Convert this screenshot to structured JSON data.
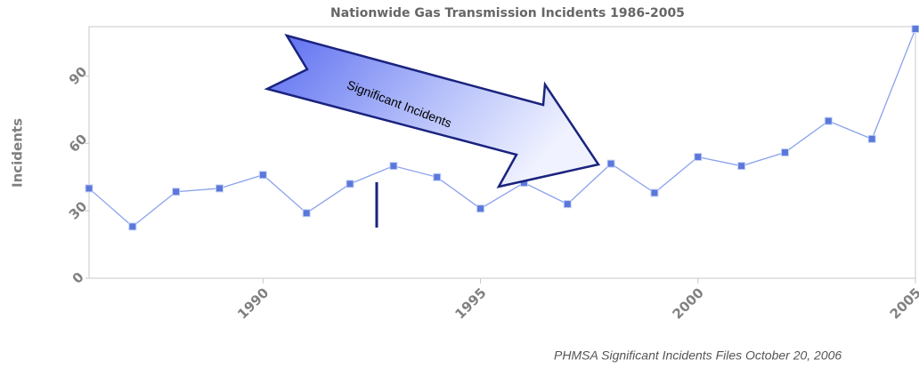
{
  "chart_data": {
    "type": "line",
    "title": "Nationwide Gas Transmission Incidents 1986-2005",
    "y_label": "Incidents",
    "annotation": "Significant Incidents",
    "source": "PHMSA Significant Incidents Files October 20, 2006",
    "x": [
      1986,
      1987,
      1988,
      1989,
      1990,
      1991,
      1992,
      1993,
      1994,
      1995,
      1996,
      1997,
      1998,
      1999,
      2000,
      2001,
      2002,
      2003,
      2004,
      2005
    ],
    "series": [
      {
        "name": "Incidents",
        "color": "#8aa2ec",
        "marker_color": "#5a78dc",
        "values": [
          40,
          23,
          38.5,
          40,
          46,
          29,
          42,
          50,
          45,
          31,
          42.5,
          33,
          51,
          38,
          54,
          50,
          56,
          70,
          62,
          111
        ]
      }
    ],
    "xlim": [
      1986,
      2005
    ],
    "xticks": [
      1990,
      1995,
      2000,
      2005
    ],
    "ylim": [
      0,
      112
    ],
    "yticks": [
      0,
      30,
      60,
      90
    ]
  }
}
